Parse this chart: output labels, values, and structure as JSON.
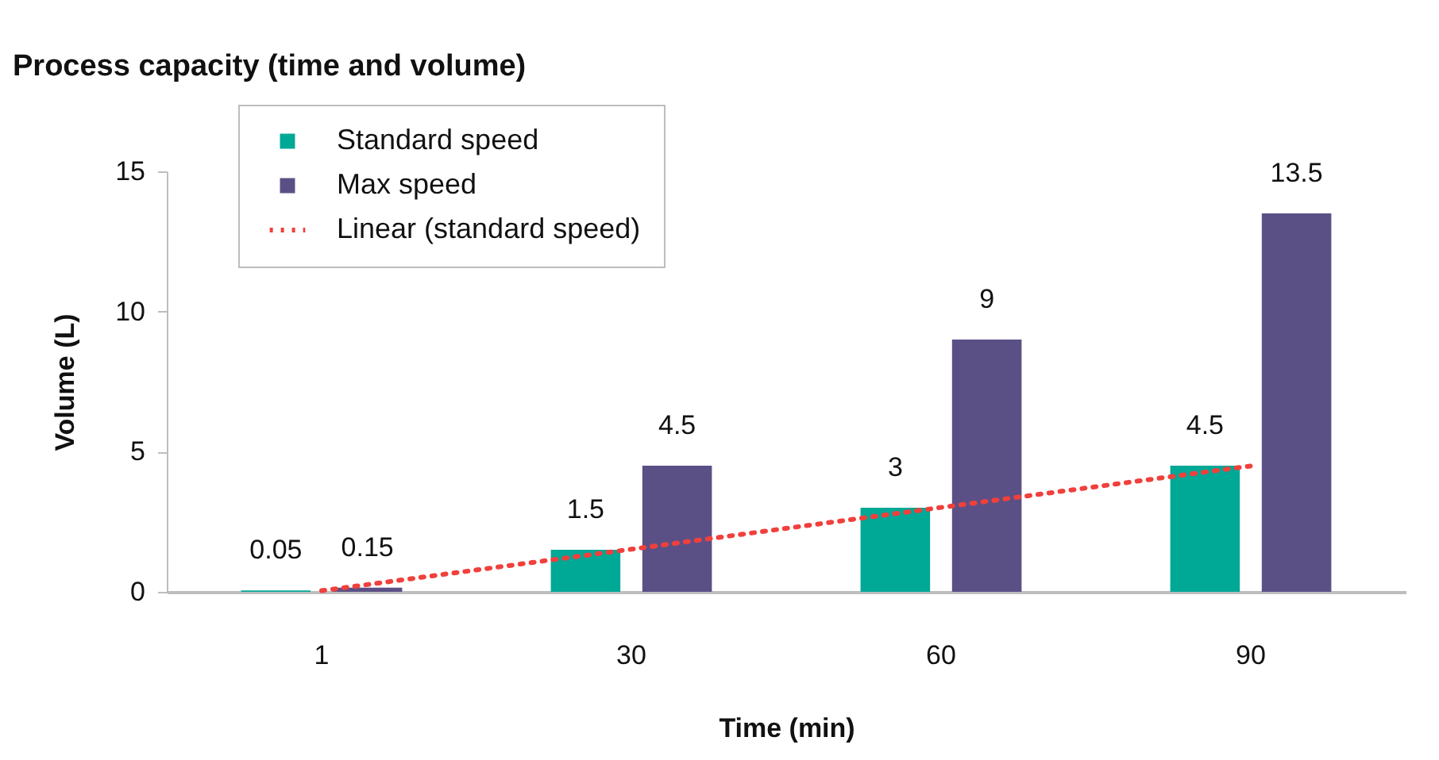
{
  "chart_data": {
    "type": "bar",
    "title": "Process capacity (time and volume)",
    "xlabel": "Time (min)",
    "ylabel": "Volume (L)",
    "categories": [
      "1",
      "30",
      "60",
      "90"
    ],
    "series": [
      {
        "name": "Standard speed",
        "color": "#00a896",
        "values": [
          0.05,
          1.5,
          3,
          4.5
        ],
        "value_labels": [
          "0.05",
          "1.5",
          "3",
          "4.5"
        ]
      },
      {
        "name": "Max speed",
        "color": "#5b5086",
        "values": [
          0.15,
          4.5,
          9,
          13.5
        ],
        "value_labels": [
          "0.15",
          "4.5",
          "9",
          "13.5"
        ]
      },
      {
        "name": "Linear (standard speed)",
        "type": "line",
        "color": "#f0403c",
        "line_style": "dotted",
        "values": [
          0.04,
          1.52,
          3.01,
          4.49
        ]
      }
    ],
    "ylim": [
      0,
      15
    ],
    "yticks": [
      0,
      5,
      10,
      15
    ],
    "grid": false,
    "legend": "top left"
  }
}
